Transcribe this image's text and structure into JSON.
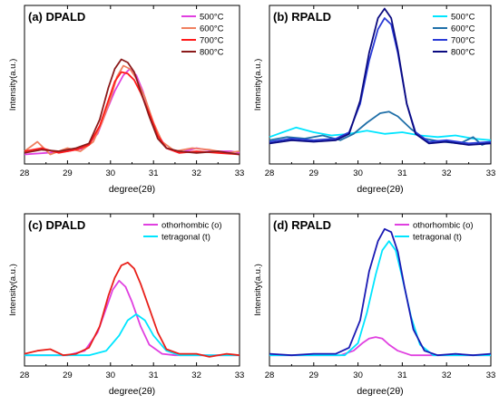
{
  "chart_data": [
    {
      "type": "line",
      "title": "(a) DPALD",
      "xlabel": "degree(2θ)",
      "ylabel": "Intensity(a.u.)",
      "xlim": [
        28,
        33
      ],
      "xticks": [
        "28",
        "29",
        "30",
        "31",
        "32",
        "33"
      ],
      "legend_position": "top-right",
      "series": [
        {
          "name": "500°C",
          "color": "#e040e0",
          "x": [
            28,
            28.5,
            29,
            29.4,
            29.7,
            29.9,
            30.1,
            30.3,
            30.45,
            30.6,
            30.75,
            30.9,
            31.1,
            31.3,
            31.6,
            32,
            32.4,
            32.8,
            33
          ],
          "y": [
            0.06,
            0.07,
            0.08,
            0.1,
            0.19,
            0.33,
            0.46,
            0.56,
            0.6,
            0.56,
            0.46,
            0.33,
            0.19,
            0.1,
            0.07,
            0.1,
            0.08,
            0.08,
            0.07
          ]
        },
        {
          "name": "600°C",
          "color": "#f08060",
          "x": [
            28,
            28.3,
            28.6,
            29,
            29.3,
            29.6,
            29.8,
            30,
            30.15,
            30.3,
            30.45,
            30.6,
            30.8,
            31,
            31.2,
            31.5,
            31.9,
            32.3,
            32.7,
            33
          ],
          "y": [
            0.08,
            0.14,
            0.06,
            0.1,
            0.08,
            0.14,
            0.26,
            0.41,
            0.55,
            0.62,
            0.6,
            0.54,
            0.42,
            0.26,
            0.14,
            0.08,
            0.1,
            0.09,
            0.07,
            0.08
          ]
        },
        {
          "name": "700°C",
          "color": "#ff1a1a",
          "x": [
            28,
            28.4,
            28.8,
            29.2,
            29.5,
            29.75,
            29.95,
            30.1,
            30.25,
            30.4,
            30.55,
            30.7,
            30.9,
            31.1,
            31.3,
            31.6,
            32,
            32.5,
            33
          ],
          "y": [
            0.08,
            0.1,
            0.07,
            0.09,
            0.12,
            0.24,
            0.4,
            0.52,
            0.58,
            0.57,
            0.53,
            0.45,
            0.32,
            0.18,
            0.1,
            0.07,
            0.08,
            0.07,
            0.06
          ]
        },
        {
          "name": "800°C",
          "color": "#8b1a1a",
          "x": [
            28,
            28.4,
            28.8,
            29.2,
            29.5,
            29.75,
            29.95,
            30.1,
            30.25,
            30.4,
            30.55,
            30.7,
            30.9,
            31.1,
            31.3,
            31.6,
            32,
            32.5,
            33
          ],
          "y": [
            0.07,
            0.09,
            0.08,
            0.1,
            0.13,
            0.28,
            0.48,
            0.6,
            0.66,
            0.64,
            0.58,
            0.46,
            0.3,
            0.16,
            0.1,
            0.08,
            0.07,
            0.08,
            0.06
          ]
        }
      ]
    },
    {
      "type": "line",
      "title": "(b) RPALD",
      "xlabel": "degree(2θ)",
      "ylabel": "Intensity(a.u.)",
      "xlim": [
        28,
        33
      ],
      "xticks": [
        "28",
        "29",
        "30",
        "31",
        "32",
        "33"
      ],
      "legend_position": "top-right",
      "series": [
        {
          "name": "500°C",
          "color": "#00e5ff",
          "x": [
            28,
            28.3,
            28.6,
            29,
            29.4,
            29.8,
            30.2,
            30.6,
            31,
            31.4,
            31.8,
            32.2,
            32.6,
            33
          ],
          "y": [
            0.17,
            0.2,
            0.23,
            0.2,
            0.18,
            0.19,
            0.21,
            0.19,
            0.2,
            0.18,
            0.17,
            0.18,
            0.16,
            0.15
          ]
        },
        {
          "name": "600°C",
          "color": "#1f6fa8",
          "x": [
            28,
            28.4,
            28.8,
            29.2,
            29.6,
            29.9,
            30.2,
            30.5,
            30.7,
            30.9,
            31.2,
            31.5,
            31.9,
            32.3,
            32.6,
            32.8,
            33
          ],
          "y": [
            0.15,
            0.17,
            0.16,
            0.18,
            0.15,
            0.19,
            0.26,
            0.32,
            0.33,
            0.3,
            0.22,
            0.16,
            0.14,
            0.13,
            0.17,
            0.12,
            0.14
          ]
        },
        {
          "name": "700°C",
          "color": "#2a3bd6",
          "x": [
            28,
            28.5,
            29,
            29.5,
            29.8,
            30.05,
            30.25,
            30.45,
            30.6,
            30.75,
            30.9,
            31.1,
            31.3,
            31.6,
            32,
            32.5,
            33
          ],
          "y": [
            0.14,
            0.16,
            0.15,
            0.16,
            0.2,
            0.38,
            0.65,
            0.85,
            0.92,
            0.88,
            0.7,
            0.38,
            0.2,
            0.14,
            0.15,
            0.13,
            0.14
          ]
        },
        {
          "name": "800°C",
          "color": "#0a0a80",
          "x": [
            28,
            28.5,
            29,
            29.5,
            29.8,
            30.05,
            30.25,
            30.45,
            30.6,
            30.75,
            30.9,
            31.1,
            31.3,
            31.6,
            32,
            32.5,
            33
          ],
          "y": [
            0.13,
            0.15,
            0.14,
            0.15,
            0.19,
            0.4,
            0.7,
            0.92,
            0.98,
            0.92,
            0.72,
            0.38,
            0.19,
            0.13,
            0.14,
            0.12,
            0.13
          ]
        }
      ]
    },
    {
      "type": "line",
      "title": "(c) DPALD",
      "xlabel": "degree(2θ)",
      "ylabel": "Intensity(a.u.)",
      "xlim": [
        28,
        33
      ],
      "xticks": [
        "28",
        "29",
        "30",
        "31",
        "32",
        "33"
      ],
      "legend_position": "top-right",
      "series": [
        {
          "name": "othorhombic (o)",
          "color": "#e040e0",
          "x": [
            28,
            29,
            29.4,
            29.7,
            29.9,
            30.05,
            30.2,
            30.35,
            30.5,
            30.7,
            30.9,
            31.2,
            31.5,
            32,
            33
          ],
          "y": [
            0.07,
            0.07,
            0.1,
            0.22,
            0.38,
            0.5,
            0.56,
            0.52,
            0.42,
            0.26,
            0.14,
            0.08,
            0.07,
            0.07,
            0.07
          ]
        },
        {
          "name": "tetragonal (t)",
          "color": "#00e5ff",
          "x": [
            28,
            29.5,
            29.9,
            30.2,
            30.4,
            30.6,
            30.8,
            31,
            31.3,
            31.6,
            32,
            33
          ],
          "y": [
            0.07,
            0.07,
            0.1,
            0.2,
            0.3,
            0.34,
            0.3,
            0.2,
            0.1,
            0.07,
            0.07,
            0.07
          ]
        },
        {
          "name": "",
          "color": "#e8201a",
          "x": [
            28,
            28.3,
            28.6,
            28.9,
            29.2,
            29.5,
            29.75,
            29.95,
            30.1,
            30.25,
            30.4,
            30.55,
            30.7,
            30.9,
            31.1,
            31.3,
            31.6,
            32,
            32.3,
            32.7,
            33
          ],
          "y": [
            0.08,
            0.1,
            0.11,
            0.07,
            0.08,
            0.12,
            0.26,
            0.46,
            0.58,
            0.66,
            0.68,
            0.64,
            0.54,
            0.38,
            0.22,
            0.11,
            0.08,
            0.08,
            0.06,
            0.08,
            0.07
          ]
        }
      ]
    },
    {
      "type": "line",
      "title": "(d) RPALD",
      "xlabel": "degree(2θ)",
      "ylabel": "Intensity(a.u.)",
      "xlim": [
        28,
        33
      ],
      "xticks": [
        "28",
        "29",
        "30",
        "31",
        "32",
        "33"
      ],
      "legend_position": "top-right",
      "series": [
        {
          "name": "othorhombic (o)",
          "color": "#e040e0",
          "x": [
            28,
            29.6,
            29.9,
            30.1,
            30.25,
            30.4,
            30.55,
            30.7,
            30.9,
            31.2,
            31.5,
            33
          ],
          "y": [
            0.07,
            0.07,
            0.1,
            0.15,
            0.18,
            0.19,
            0.18,
            0.14,
            0.1,
            0.07,
            0.07,
            0.07
          ]
        },
        {
          "name": "tetragonal (t)",
          "color": "#00e5ff",
          "x": [
            28,
            29.7,
            30,
            30.2,
            30.4,
            30.55,
            30.7,
            30.85,
            31,
            31.2,
            31.4,
            31.7,
            33
          ],
          "y": [
            0.07,
            0.07,
            0.15,
            0.35,
            0.6,
            0.76,
            0.82,
            0.76,
            0.58,
            0.32,
            0.14,
            0.07,
            0.07
          ]
        },
        {
          "name": "",
          "color": "#1a1ab4",
          "x": [
            28,
            28.5,
            29,
            29.5,
            29.8,
            30.05,
            30.25,
            30.45,
            30.6,
            30.75,
            30.9,
            31.05,
            31.25,
            31.5,
            31.8,
            32.2,
            32.6,
            33
          ],
          "y": [
            0.08,
            0.07,
            0.08,
            0.08,
            0.12,
            0.3,
            0.62,
            0.82,
            0.9,
            0.88,
            0.75,
            0.52,
            0.24,
            0.1,
            0.07,
            0.08,
            0.07,
            0.08
          ]
        }
      ]
    }
  ]
}
